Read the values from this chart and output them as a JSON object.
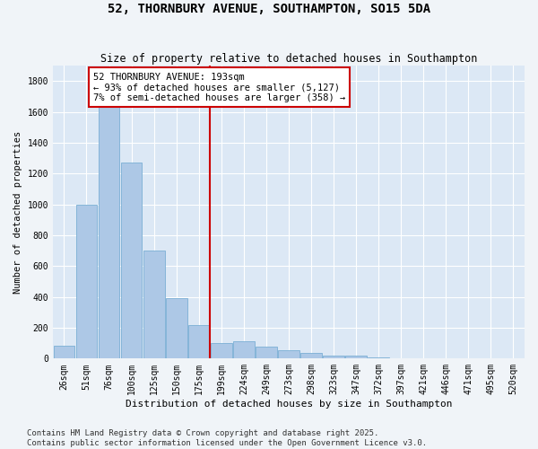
{
  "title": "52, THORNBURY AVENUE, SOUTHAMPTON, SO15 5DA",
  "subtitle": "Size of property relative to detached houses in Southampton",
  "xlabel": "Distribution of detached houses by size in Southampton",
  "ylabel": "Number of detached properties",
  "bar_color": "#adc8e6",
  "bar_edge_color": "#7aafd4",
  "background_color": "#dce8f5",
  "fig_background_color": "#f0f4f8",
  "annotation_text": "52 THORNBURY AVENUE: 193sqm\n← 93% of detached houses are smaller (5,127)\n7% of semi-detached houses are larger (358) →",
  "annotation_box_color": "#ffffff",
  "annotation_border_color": "#cc0000",
  "vline_x": 6,
  "vline_color": "#cc0000",
  "categories": [
    "26sqm",
    "51sqm",
    "76sqm",
    "100sqm",
    "125sqm",
    "150sqm",
    "175sqm",
    "199sqm",
    "224sqm",
    "249sqm",
    "273sqm",
    "298sqm",
    "323sqm",
    "347sqm",
    "372sqm",
    "397sqm",
    "421sqm",
    "446sqm",
    "471sqm",
    "495sqm",
    "520sqm"
  ],
  "values": [
    85,
    1000,
    1640,
    1270,
    700,
    390,
    215,
    100,
    115,
    75,
    55,
    35,
    20,
    20,
    8,
    4,
    0,
    0,
    0,
    0,
    0
  ],
  "ylim": [
    0,
    1900
  ],
  "yticks": [
    0,
    200,
    400,
    600,
    800,
    1000,
    1200,
    1400,
    1600,
    1800
  ],
  "footer_text": "Contains HM Land Registry data © Crown copyright and database right 2025.\nContains public sector information licensed under the Open Government Licence v3.0.",
  "grid_color": "#ffffff",
  "title_fontsize": 10,
  "subtitle_fontsize": 8.5,
  "xlabel_fontsize": 8,
  "ylabel_fontsize": 7.5,
  "tick_fontsize": 7,
  "annotation_fontsize": 7.5,
  "footer_fontsize": 6.5
}
